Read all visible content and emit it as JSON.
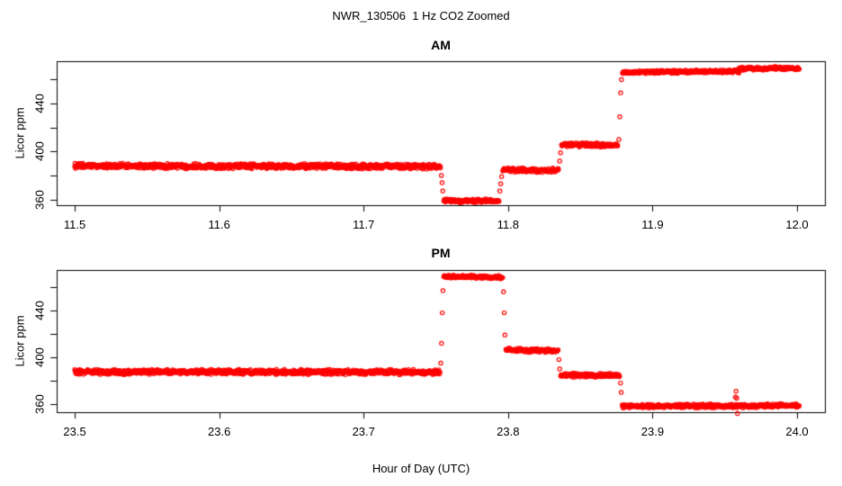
{
  "title": "NWR_130506  1 Hz CO2 Zoomed",
  "xlabel": "Hour of Day (UTC)",
  "colors": {
    "points": "#FF0000",
    "axis": "#000000",
    "background": "#FFFFFF"
  },
  "chart_data": [
    {
      "type": "scatter",
      "panel": "AM",
      "title": "AM",
      "ylabel": "Licor ppm",
      "marker": "open-circle",
      "sample_rate_hz": 1,
      "xlim": [
        11.4875,
        12.0193
      ],
      "ylim": [
        355.2,
        475.4
      ],
      "xticks": [
        11.5,
        11.6,
        11.7,
        11.8,
        11.9,
        12.0
      ],
      "yticks_labeled": [
        360,
        400,
        440
      ],
      "yticks_unlabeled": [
        380,
        420,
        460
      ],
      "grid": false,
      "segments": [
        {
          "t0": 11.5,
          "t1": 11.7532,
          "v0": 388.0,
          "v1": 387.5,
          "noise": 2.4
        },
        {
          "t0": 11.7555,
          "t1": 11.7937,
          "v0": 358.8,
          "v1": 358.8,
          "noise": 1.9
        },
        {
          "t0": 11.7963,
          "t1": 11.8349,
          "v0": 384.6,
          "v1": 384.2,
          "noise": 2.0
        },
        {
          "t0": 11.837,
          "t1": 11.8759,
          "v0": 405.6,
          "v1": 405.4,
          "noise": 2.0
        },
        {
          "t0": 11.8792,
          "t1": 11.96,
          "v0": 466.2,
          "v1": 466.9,
          "noise": 1.6
        },
        {
          "t0": 11.96,
          "t1": 12.0015,
          "v0": 469.2,
          "v1": 469.6,
          "noise": 1.6
        }
      ],
      "transition_points": [
        {
          "t": 11.7538,
          "v": 380
        },
        {
          "t": 11.7543,
          "v": 374
        },
        {
          "t": 11.7548,
          "v": 367
        },
        {
          "t": 11.7943,
          "v": 367
        },
        {
          "t": 11.7949,
          "v": 373
        },
        {
          "t": 11.7955,
          "v": 379
        },
        {
          "t": 11.8357,
          "v": 392
        },
        {
          "t": 11.8363,
          "v": 399
        },
        {
          "t": 11.8767,
          "v": 410
        },
        {
          "t": 11.8773,
          "v": 429
        },
        {
          "t": 11.8779,
          "v": 449
        },
        {
          "t": 11.8785,
          "v": 460
        }
      ]
    },
    {
      "type": "scatter",
      "panel": "PM",
      "title": "PM",
      "ylabel": "Licor ppm",
      "marker": "open-circle",
      "sample_rate_hz": 1,
      "xlim": [
        23.4875,
        24.0193
      ],
      "ylim": [
        353.1,
        474.6
      ],
      "xticks": [
        23.5,
        23.6,
        23.7,
        23.8,
        23.9,
        24.0
      ],
      "yticks_labeled": [
        360,
        400,
        440
      ],
      "yticks_unlabeled": [
        380,
        420,
        460
      ],
      "grid": false,
      "segments": [
        {
          "t0": 23.5,
          "t1": 23.7528,
          "v0": 387.6,
          "v1": 387.3,
          "noise": 2.4
        },
        {
          "t0": 23.7555,
          "t1": 23.7962,
          "v0": 468.9,
          "v1": 468.4,
          "noise": 1.6
        },
        {
          "t0": 23.7985,
          "t1": 23.8346,
          "v0": 406.3,
          "v1": 405.7,
          "noise": 1.9
        },
        {
          "t0": 23.8364,
          "t1": 23.8772,
          "v0": 385.0,
          "v1": 384.4,
          "noise": 1.9
        },
        {
          "t0": 23.879,
          "t1": 24.0015,
          "v0": 358.2,
          "v1": 358.7,
          "noise": 1.8
        }
      ],
      "transition_points": [
        {
          "t": 23.7534,
          "v": 395
        },
        {
          "t": 23.7539,
          "v": 412
        },
        {
          "t": 23.7544,
          "v": 438
        },
        {
          "t": 23.7549,
          "v": 457
        },
        {
          "t": 23.7968,
          "v": 456
        },
        {
          "t": 23.7973,
          "v": 438
        },
        {
          "t": 23.7978,
          "v": 419
        },
        {
          "t": 23.8352,
          "v": 398
        },
        {
          "t": 23.8357,
          "v": 390
        },
        {
          "t": 23.8778,
          "v": 378
        },
        {
          "t": 23.8783,
          "v": 370
        },
        {
          "t": 23.9573,
          "v": 366
        },
        {
          "t": 23.9578,
          "v": 371
        },
        {
          "t": 23.9583,
          "v": 365
        },
        {
          "t": 23.9588,
          "v": 352
        }
      ]
    }
  ]
}
